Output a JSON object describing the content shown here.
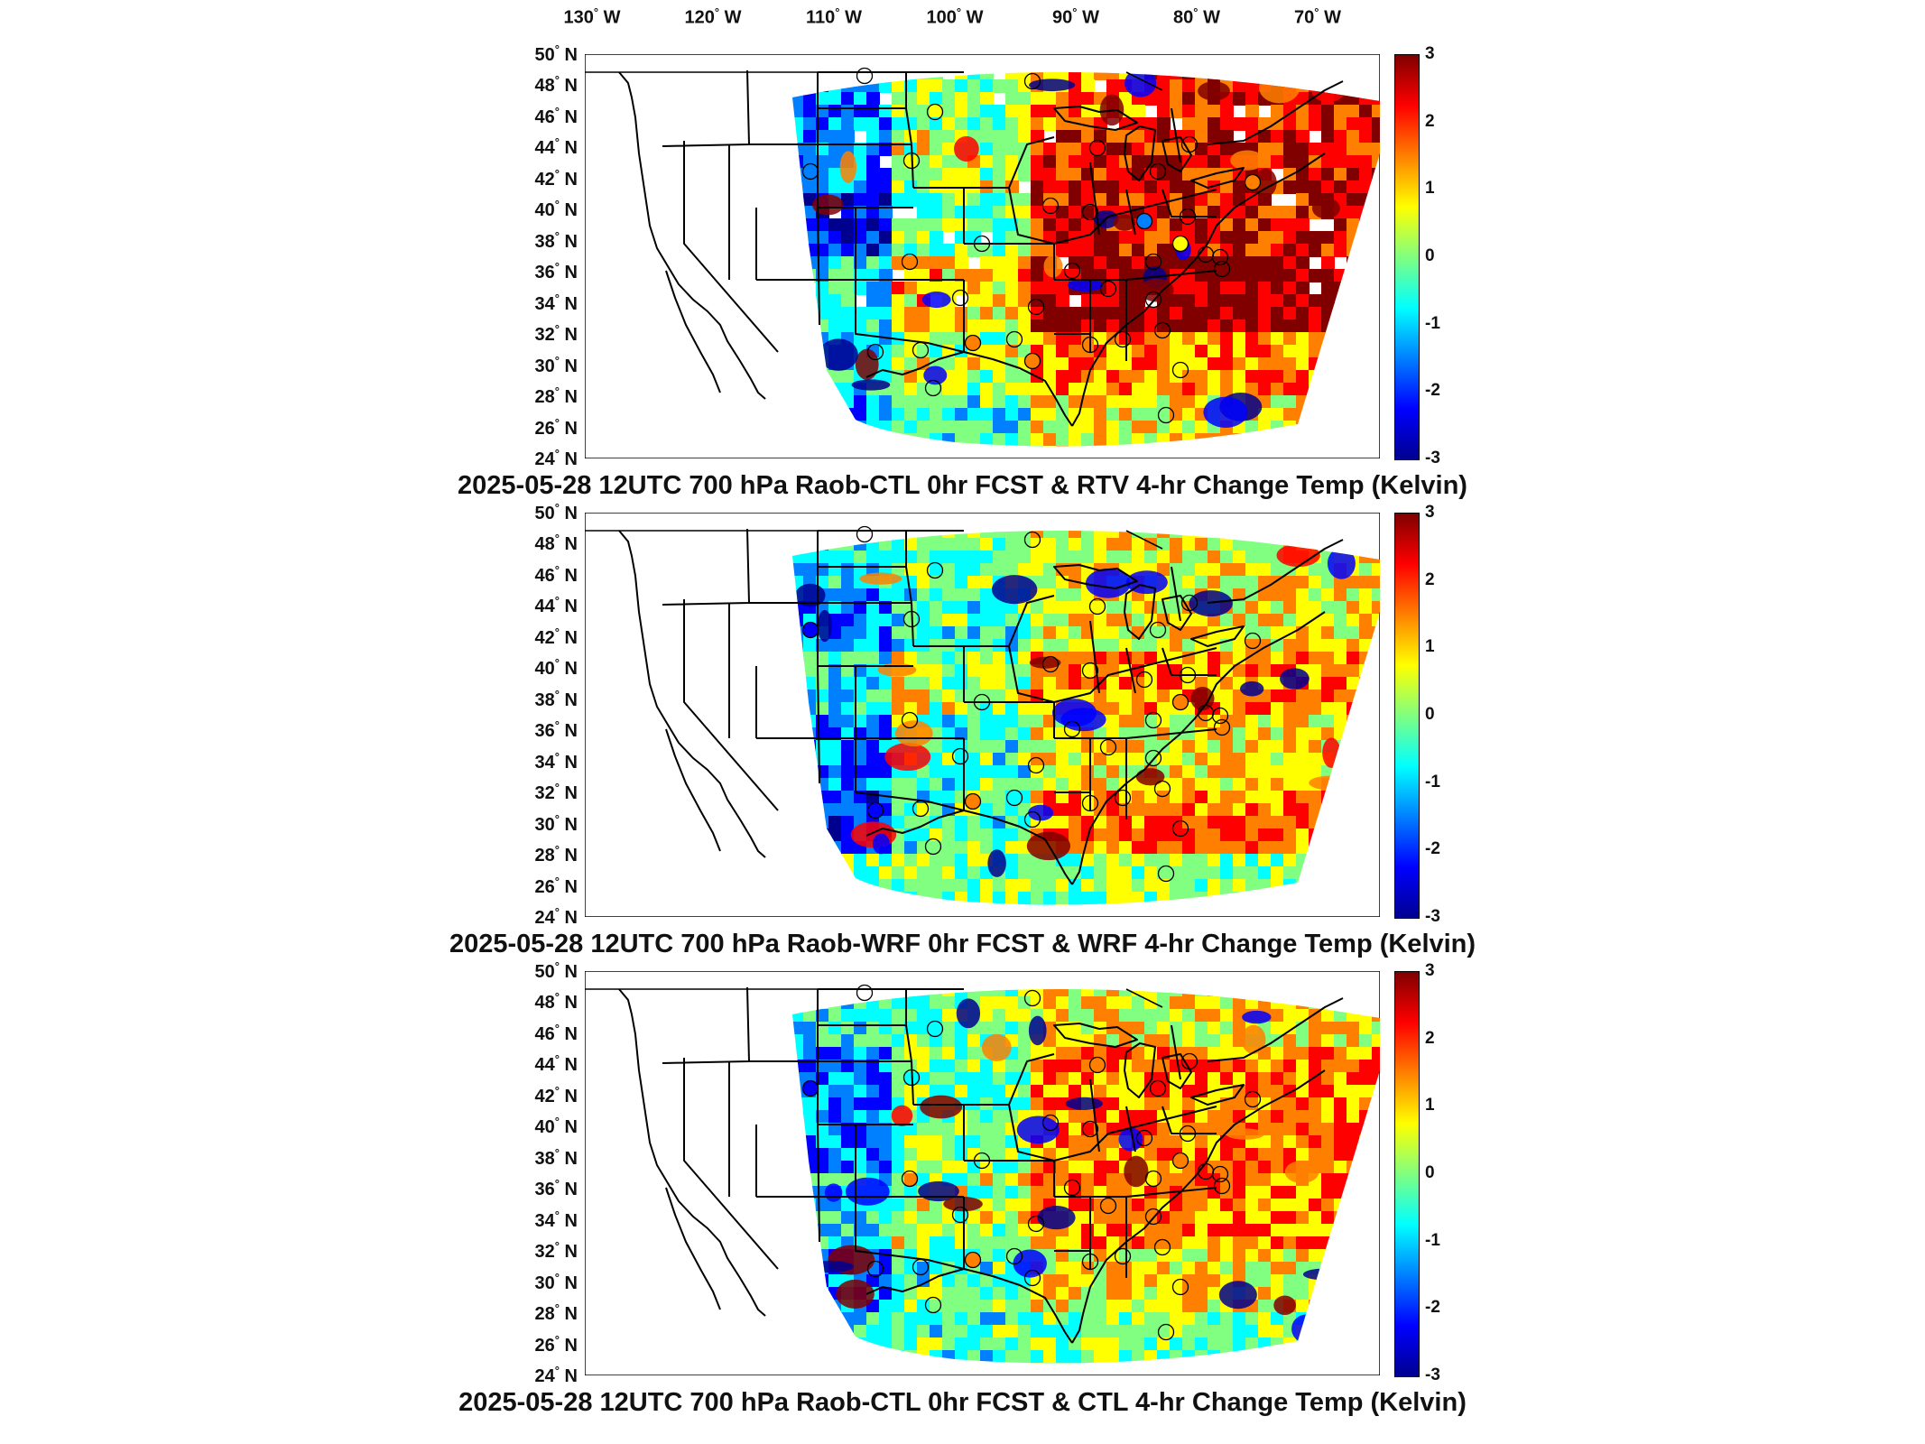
{
  "longitude_labels": [
    "130",
    "120",
    "110",
    "100",
    "90",
    "80",
    "70"
  ],
  "lon_suffix": "W",
  "latitude_labels": [
    "50",
    "48",
    "46",
    "44",
    "42",
    "40",
    "38",
    "36",
    "34",
    "32",
    "30",
    "28",
    "26",
    "24"
  ],
  "lat_suffix": "N",
  "colorbar": {
    "ticks": [
      "3",
      "2",
      "1",
      "0",
      "-1",
      "-2",
      "-3"
    ],
    "min": -3,
    "max": 3,
    "colors": [
      "#00008f",
      "#0000ff",
      "#0080ff",
      "#00ffff",
      "#80ff80",
      "#ffff00",
      "#ff8000",
      "#ff0000",
      "#800000"
    ]
  },
  "panels": [
    {
      "title": "2025-05-28 12UTC 700 hPa Raob-CTL 0hr FCST & RTV 4-hr Change Temp (Kelvin)",
      "scheme": "rtv"
    },
    {
      "title": "2025-05-28 12UTC 700 hPa Raob-WRF 0hr FCST & WRF 4-hr Change Temp (Kelvin)",
      "scheme": "wrf"
    },
    {
      "title": "2025-05-28 12UTC 700 hPa Raob-CTL 0hr FCST & CTL 4-hr Change Temp (Kelvin)",
      "scheme": "ctl"
    }
  ],
  "legend_units": "Kelvin"
}
